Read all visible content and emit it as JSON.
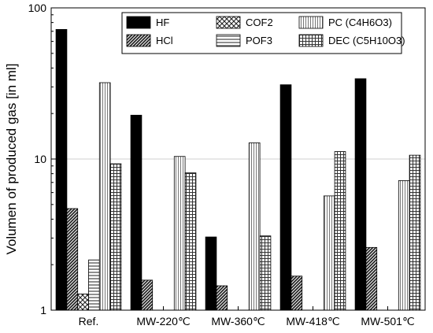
{
  "chart_data": {
    "type": "bar",
    "title": "",
    "xlabel": "",
    "ylabel": "Volumen of produced gas [in ml]",
    "y_scale": "log",
    "ylim": [
      1,
      100
    ],
    "y_ticks": [
      "1",
      "10",
      "100"
    ],
    "grid": "horizontal major lines",
    "legend_placement": "top-right",
    "categories": [
      "Ref.",
      "MW-220℃",
      "MW-360℃",
      "MW-418℃",
      "MW-501℃"
    ],
    "series": [
      {
        "name": "HF",
        "pattern": "solid",
        "values": [
          72,
          19.5,
          3.05,
          31,
          34
        ]
      },
      {
        "name": "HCl",
        "pattern": "dense-diagonal",
        "values": [
          4.7,
          1.58,
          1.45,
          1.68,
          2.6
        ]
      },
      {
        "name": "COF2",
        "pattern": "crosshatch",
        "values": [
          1.28,
          null,
          null,
          null,
          null
        ]
      },
      {
        "name": "POF3",
        "pattern": "horizontal-lines",
        "values": [
          2.15,
          null,
          null,
          null,
          null
        ]
      },
      {
        "name": "PC (C4H6O3)",
        "pattern": "vertical-lines",
        "values": [
          32,
          10.4,
          12.8,
          5.7,
          7.2
        ]
      },
      {
        "name": "DEC (C5H10O3)",
        "pattern": "grid",
        "values": [
          9.3,
          8.1,
          3.1,
          11.2,
          10.6
        ]
      }
    ]
  }
}
